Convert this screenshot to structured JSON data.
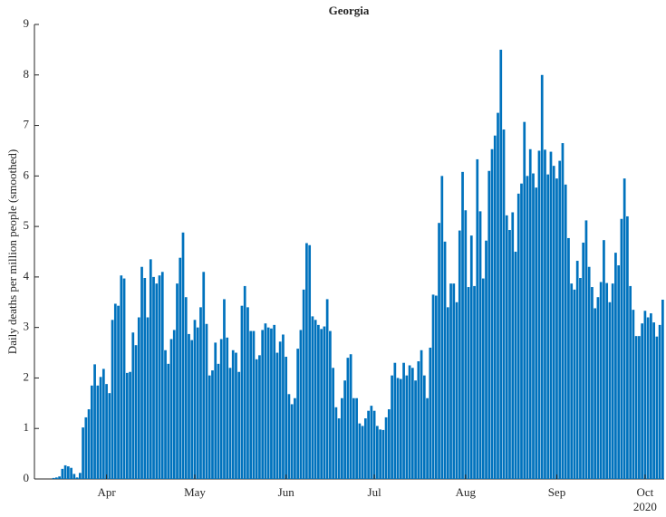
{
  "chart_data": {
    "type": "bar",
    "title": "Georgia",
    "ylabel": "Daily deaths per million people (smoothed)",
    "xlabel_secondary": "2020",
    "color": "#0072bd",
    "ylim": [
      0,
      9
    ],
    "yticks": [
      0,
      1,
      2,
      3,
      4,
      5,
      6,
      7,
      8,
      9
    ],
    "categories": [
      null,
      null,
      null,
      null,
      null,
      null,
      null,
      null,
      null,
      null,
      null,
      null,
      null,
      null,
      null,
      null,
      null,
      null,
      null,
      null,
      null,
      null,
      null,
      null,
      "Apr",
      null,
      null,
      null,
      null,
      null,
      null,
      null,
      null,
      null,
      null,
      null,
      null,
      null,
      null,
      null,
      null,
      null,
      null,
      null,
      null,
      null,
      null,
      null,
      null,
      null,
      null,
      null,
      null,
      null,
      "May",
      null,
      null,
      null,
      null,
      null,
      null,
      null,
      null,
      null,
      null,
      null,
      null,
      null,
      null,
      null,
      null,
      null,
      null,
      null,
      null,
      null,
      null,
      null,
      null,
      null,
      null,
      null,
      null,
      null,
      null,
      "Jun",
      null,
      null,
      null,
      null,
      null,
      null,
      null,
      null,
      null,
      null,
      null,
      null,
      null,
      null,
      null,
      null,
      null,
      null,
      null,
      null,
      null,
      null,
      null,
      null,
      null,
      null,
      null,
      null,
      null,
      "Jul",
      null,
      null,
      null,
      null,
      null,
      null,
      null,
      null,
      null,
      null,
      null,
      null,
      null,
      null,
      null,
      null,
      null,
      null,
      null,
      null,
      null,
      null,
      null,
      null,
      null,
      null,
      null,
      null,
      null,
      null,
      "Aug",
      null,
      null,
      null,
      null,
      null,
      null,
      null,
      null,
      null,
      null,
      null,
      null,
      null,
      null,
      null,
      null,
      null,
      null,
      null,
      null,
      null,
      null,
      null,
      null,
      null,
      null,
      null,
      null,
      null,
      null,
      "Sep",
      null,
      null,
      null,
      null,
      null,
      null,
      null,
      null,
      null,
      null,
      null,
      null,
      null,
      null,
      null,
      null,
      null,
      null,
      null,
      null,
      null,
      null,
      null,
      null,
      null,
      null,
      null,
      null,
      null,
      "Oct",
      null,
      null,
      null,
      null,
      null,
      null
    ],
    "values": [
      0,
      0,
      0,
      0,
      0,
      0,
      0.02,
      0.03,
      0.05,
      0.2,
      0.27,
      0.25,
      0.22,
      0.1,
      0.03,
      0.12,
      1.02,
      1.22,
      1.38,
      1.85,
      2.27,
      1.85,
      2.02,
      2.18,
      1.88,
      1.7,
      3.15,
      3.47,
      3.43,
      4.03,
      3.97,
      2.1,
      2.12,
      2.9,
      2.65,
      3.2,
      4.2,
      3.98,
      3.2,
      4.35,
      4.0,
      3.87,
      4.03,
      4.1,
      2.55,
      2.28,
      2.77,
      2.95,
      3.87,
      4.38,
      4.88,
      3.6,
      2.87,
      2.75,
      3.15,
      3.0,
      3.4,
      4.1,
      3.07,
      2.05,
      2.15,
      2.7,
      2.28,
      2.77,
      3.56,
      2.8,
      2.2,
      2.55,
      2.5,
      2.12,
      3.43,
      3.82,
      3.4,
      2.93,
      2.93,
      2.37,
      2.45,
      2.95,
      3.08,
      3.0,
      2.98,
      3.05,
      2.5,
      2.72,
      2.86,
      2.42,
      1.68,
      1.48,
      1.6,
      2.58,
      2.95,
      3.75,
      4.67,
      4.63,
      3.22,
      3.15,
      3.05,
      2.97,
      3.02,
      3.56,
      2.93,
      2.2,
      1.42,
      1.2,
      1.6,
      1.95,
      2.4,
      2.47,
      1.6,
      1.6,
      1.1,
      1.05,
      1.2,
      1.35,
      1.45,
      1.35,
      1.05,
      0.98,
      0.97,
      1.22,
      1.38,
      2.05,
      2.3,
      2.0,
      1.98,
      2.3,
      2.05,
      2.25,
      2.2,
      1.95,
      2.33,
      2.55,
      2.05,
      1.6,
      2.6,
      3.65,
      3.63,
      5.07,
      6.0,
      4.7,
      3.4,
      3.87,
      3.87,
      3.5,
      4.92,
      6.08,
      5.32,
      3.8,
      4.82,
      3.82,
      6.33,
      5.3,
      3.97,
      4.72,
      6.1,
      6.53,
      6.8,
      7.25,
      8.5,
      6.92,
      5.22,
      4.93,
      5.28,
      4.5,
      5.65,
      5.85,
      7.07,
      6.0,
      6.53,
      6.05,
      5.77,
      6.5,
      8.0,
      6.52,
      6.03,
      6.48,
      6.2,
      5.95,
      6.3,
      6.65,
      5.83,
      4.77,
      3.87,
      3.75,
      4.32,
      3.98,
      4.68,
      5.12,
      4.2,
      3.8,
      3.38,
      3.6,
      3.9,
      4.73,
      3.88,
      3.5,
      3.87,
      4.48,
      4.23,
      5.15,
      5.95,
      5.2,
      3.82,
      3.35,
      2.83,
      2.83,
      3.08,
      3.33,
      3.2,
      3.28,
      3.1,
      2.82,
      3.05,
      3.55
    ]
  }
}
